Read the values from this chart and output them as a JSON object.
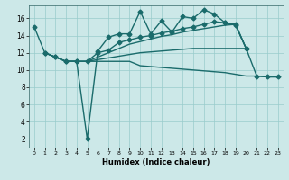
{
  "background_color": "#cce8e8",
  "grid_color": "#99cccc",
  "line_color": "#1a6b6b",
  "xlabel": "Humidex (Indice chaleur)",
  "xlim": [
    -0.5,
    23.5
  ],
  "ylim": [
    1,
    17.5
  ],
  "yticks": [
    2,
    4,
    6,
    8,
    10,
    12,
    14,
    16
  ],
  "xticks": [
    0,
    1,
    2,
    3,
    4,
    5,
    6,
    7,
    8,
    9,
    10,
    11,
    12,
    13,
    14,
    15,
    16,
    17,
    18,
    19,
    20,
    21,
    22,
    23
  ],
  "series": [
    {
      "x": [
        0,
        1,
        2,
        3,
        4,
        5,
        6,
        7,
        8,
        9,
        10,
        11,
        12,
        13,
        14,
        15,
        16,
        17,
        18,
        19,
        20
      ],
      "y": [
        15,
        12,
        11.5,
        11,
        11,
        2,
        12.2,
        13.8,
        14.2,
        14.2,
        16.8,
        14.2,
        15.7,
        14.4,
        16.2,
        16.0,
        17.0,
        16.5,
        15.5,
        15.2,
        12.5
      ],
      "marker": "D",
      "markersize": 2.5,
      "linewidth": 1.0
    },
    {
      "x": [
        1,
        2,
        3,
        4,
        5,
        6,
        7,
        8,
        9,
        10,
        11,
        12,
        13,
        14,
        15,
        16,
        17,
        18,
        19,
        20,
        21,
        22,
        23
      ],
      "y": [
        12,
        11.5,
        11,
        11,
        11,
        12,
        12.3,
        13.2,
        13.5,
        13.8,
        14.0,
        14.3,
        14.5,
        14.8,
        15.0,
        15.3,
        15.6,
        15.5,
        15.3,
        12.5,
        9.3,
        9.2,
        9.2
      ],
      "marker": "D",
      "markersize": 2.5,
      "linewidth": 1.0
    },
    {
      "x": [
        1,
        2,
        3,
        4,
        5,
        6,
        7,
        8,
        9,
        10,
        11,
        12,
        13,
        14,
        15,
        16,
        17,
        18,
        19,
        20
      ],
      "y": [
        12,
        11.5,
        11,
        11,
        11,
        11.5,
        12.0,
        12.5,
        13.0,
        13.3,
        13.6,
        13.9,
        14.1,
        14.4,
        14.6,
        14.8,
        15.0,
        15.2,
        15.3,
        12.5
      ],
      "marker": null,
      "markersize": 0,
      "linewidth": 1.0
    },
    {
      "x": [
        1,
        2,
        3,
        4,
        5,
        6,
        7,
        8,
        9,
        10,
        11,
        12,
        13,
        14,
        15,
        16,
        17,
        18,
        19,
        20
      ],
      "y": [
        12,
        11.5,
        11,
        11,
        11,
        11.2,
        11.4,
        11.6,
        11.8,
        12.0,
        12.1,
        12.2,
        12.3,
        12.4,
        12.5,
        12.5,
        12.5,
        12.5,
        12.5,
        12.5
      ],
      "marker": null,
      "markersize": 0,
      "linewidth": 1.0
    },
    {
      "x": [
        5,
        6,
        7,
        8,
        9,
        10,
        11,
        12,
        13,
        14,
        15,
        16,
        17,
        18,
        19,
        20,
        21,
        22,
        23
      ],
      "y": [
        11,
        11,
        11,
        11,
        11,
        10.5,
        10.4,
        10.3,
        10.2,
        10.1,
        10.0,
        9.9,
        9.8,
        9.7,
        9.5,
        9.3,
        9.3,
        9.2,
        9.2
      ],
      "marker": null,
      "markersize": 0,
      "linewidth": 1.0
    }
  ]
}
